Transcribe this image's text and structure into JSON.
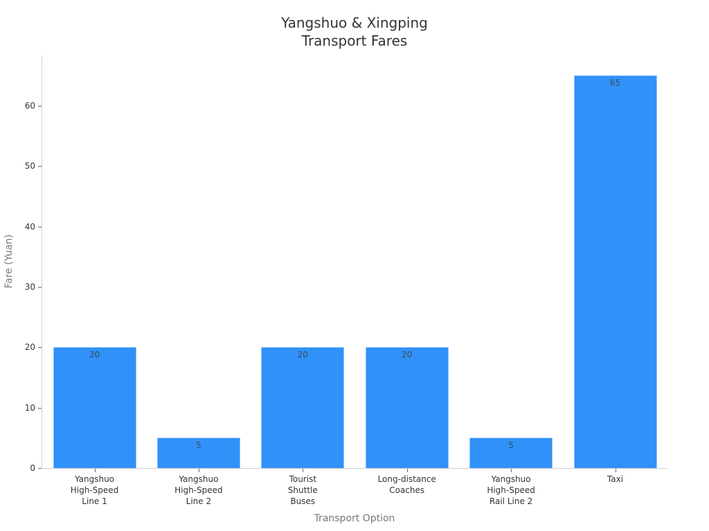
{
  "chart_data": {
    "type": "bar",
    "title": "Yangshuo & Xingping Transport Fares",
    "title_lines": [
      "Yangshuo & Xingping",
      "Transport Fares"
    ],
    "xlabel": "Transport Option",
    "ylabel": "Fare (Yuan)",
    "categories": [
      "Yangshuo High-Speed Line 1",
      "Yangshuo High-Speed Line 2",
      "Tourist Shuttle Buses",
      "Long-distance Coaches",
      "Yangshuo High-Speed Rail Line 2",
      "Taxi"
    ],
    "category_lines": [
      [
        "Yangshuo",
        "High-Speed",
        "Line 1"
      ],
      [
        "Yangshuo",
        "High-Speed",
        "Line 2"
      ],
      [
        "Tourist",
        "Shuttle",
        "Buses"
      ],
      [
        "Long-distance",
        "Coaches"
      ],
      [
        "Yangshuo",
        "High-Speed",
        "Rail Line 2"
      ],
      [
        "Taxi"
      ]
    ],
    "values": [
      20,
      5,
      20,
      20,
      5,
      65
    ],
    "value_labels": [
      "20",
      "5",
      "20",
      "20",
      "5",
      "65"
    ],
    "yticks": [
      0,
      10,
      20,
      30,
      40,
      50,
      60
    ],
    "ylim": [
      0,
      68.3
    ],
    "grid": false,
    "legend": null,
    "bar_color": "#3091f8"
  }
}
